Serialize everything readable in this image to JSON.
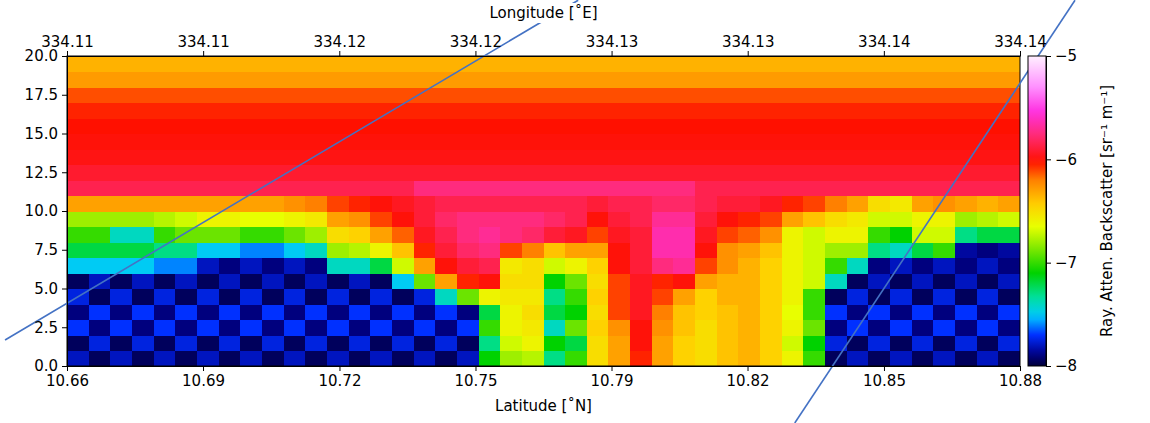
{
  "chart_data": {
    "type": "heatmap",
    "x_label": "Latitude [˚N]",
    "x2_label": "Longitude [˚E]",
    "xlim": [
      10.66,
      10.88
    ],
    "xticks": [
      10.66,
      {
        "value": 10.6914,
        "label": "10.69"
      },
      {
        "value": 10.7229,
        "label": "10.72"
      },
      {
        "value": 10.7543,
        "label": "10.75"
      },
      {
        "value": 10.7857,
        "label": "10.79"
      },
      {
        "value": 10.8171,
        "label": "10.82"
      },
      {
        "value": 10.8486,
        "label": "10.85"
      },
      10.88
    ],
    "x2lim": [
      334.108,
      334.143
    ],
    "x2ticks": [
      {
        "value": 334.108,
        "label": "334.11"
      },
      {
        "value": 334.113,
        "label": "334.11"
      },
      {
        "value": 334.118,
        "label": "334.12"
      },
      {
        "value": 334.123,
        "label": "334.12"
      },
      {
        "value": 334.128,
        "label": "334.13"
      },
      {
        "value": 334.133,
        "label": "334.13"
      },
      {
        "value": 334.138,
        "label": "334.14"
      },
      {
        "value": 334.143,
        "label": "334.14"
      }
    ],
    "ylim": [
      0,
      20
    ],
    "yticks": [
      {
        "value": 0,
        "label": "0.0"
      },
      2.5,
      {
        "value": 5,
        "label": "5.0"
      },
      7.5,
      {
        "value": 10,
        "label": "10.0"
      },
      12.5,
      {
        "value": 15,
        "label": "15.0"
      },
      17.5,
      {
        "value": 20,
        "label": "20.0"
      }
    ],
    "x_edges": [
      10.66,
      10.665,
      10.67,
      10.675,
      10.68,
      10.685,
      10.69,
      10.695,
      10.7,
      10.705,
      10.71,
      10.715,
      10.72,
      10.725,
      10.73,
      10.735,
      10.74,
      10.745,
      10.75,
      10.755,
      10.76,
      10.765,
      10.77,
      10.775,
      10.78,
      10.785,
      10.79,
      10.795,
      10.8,
      10.805,
      10.81,
      10.815,
      10.82,
      10.825,
      10.83,
      10.835,
      10.84,
      10.845,
      10.85,
      10.855,
      10.86,
      10.865,
      10.87,
      10.875,
      10.88
    ],
    "y_edges": [
      0,
      1,
      2,
      3,
      4,
      5,
      6,
      7,
      8,
      9,
      10,
      11,
      12,
      13,
      14,
      15,
      16,
      17,
      18,
      19,
      20
    ],
    "z": [
      [
        -7.8,
        -7.95,
        -7.8,
        -7.95,
        -7.8,
        -7.95,
        -7.8,
        -7.95,
        -7.8,
        -7.95,
        -7.8,
        -7.95,
        -7.8,
        -7.95,
        -7.8,
        -7.95,
        -7.8,
        -7.95,
        -7.8,
        -7.1,
        -6.8,
        -6.75,
        -7.3,
        -7.0,
        -6.5,
        -6.3,
        -6.05,
        -6.3,
        -6.45,
        -6.5,
        -6.4,
        -6.35,
        -6.45,
        -6.6,
        -7.0,
        -7.95,
        -7.8,
        -7.95,
        -7.8,
        -7.95,
        -7.8,
        -7.95,
        -7.8,
        -7.95
      ],
      [
        -7.95,
        -7.75,
        -7.95,
        -7.75,
        -7.95,
        -7.75,
        -7.95,
        -7.75,
        -7.95,
        -7.75,
        -7.95,
        -7.75,
        -7.95,
        -7.75,
        -7.95,
        -7.75,
        -7.95,
        -7.75,
        -7.95,
        -7.3,
        -6.7,
        -6.6,
        -7.1,
        -7.2,
        -6.5,
        -6.3,
        -6.0,
        -6.3,
        -6.45,
        -6.5,
        -6.4,
        -6.35,
        -6.45,
        -6.7,
        -7.1,
        -7.75,
        -7.95,
        -7.75,
        -7.95,
        -7.75,
        -7.95,
        -7.75,
        -7.95,
        -7.75
      ],
      [
        -7.7,
        -7.9,
        -7.7,
        -7.9,
        -7.7,
        -7.9,
        -7.7,
        -7.9,
        -7.7,
        -7.9,
        -7.7,
        -7.9,
        -7.7,
        -7.9,
        -7.7,
        -7.9,
        -7.7,
        -7.9,
        -7.7,
        -7.0,
        -6.6,
        -6.55,
        -7.4,
        -6.9,
        -6.45,
        -6.25,
        -6.0,
        -6.25,
        -6.4,
        -6.5,
        -6.4,
        -6.35,
        -6.45,
        -6.6,
        -6.9,
        -7.9,
        -7.7,
        -7.9,
        -7.7,
        -7.9,
        -7.7,
        -7.9,
        -7.7,
        -7.9
      ],
      [
        -7.9,
        -7.7,
        -7.9,
        -7.7,
        -7.9,
        -7.7,
        -7.9,
        -7.7,
        -7.9,
        -7.7,
        -7.9,
        -7.7,
        -7.9,
        -7.7,
        -7.9,
        -7.7,
        -7.9,
        -7.7,
        -7.9,
        -7.2,
        -6.6,
        -6.5,
        -7.2,
        -7.1,
        -6.5,
        -6.1,
        -5.95,
        -6.2,
        -6.4,
        -6.45,
        -6.4,
        -6.35,
        -6.45,
        -6.65,
        -7.0,
        -7.7,
        -7.9,
        -7.7,
        -7.9,
        -7.7,
        -7.9,
        -7.7,
        -7.9,
        -7.7
      ],
      [
        -7.75,
        -7.95,
        -7.75,
        -7.95,
        -7.75,
        -7.95,
        -7.75,
        -7.95,
        -7.75,
        -7.95,
        -7.75,
        -7.95,
        -7.75,
        -7.95,
        -7.75,
        -7.95,
        -7.75,
        -7.4,
        -6.9,
        -6.6,
        -6.55,
        -6.55,
        -7.3,
        -7.0,
        -6.45,
        -6.1,
        -5.95,
        -6.1,
        -6.3,
        -6.45,
        -6.35,
        -6.35,
        -6.45,
        -6.6,
        -7.0,
        -7.95,
        -7.75,
        -7.95,
        -7.75,
        -7.95,
        -7.75,
        -7.95,
        -7.75,
        -7.95
      ],
      [
        -7.95,
        -7.8,
        -7.95,
        -7.8,
        -7.95,
        -7.8,
        -7.95,
        -7.8,
        -7.95,
        -7.8,
        -7.95,
        -7.8,
        -7.95,
        -7.8,
        -7.95,
        -7.5,
        -6.9,
        -6.3,
        -6.05,
        -6.0,
        -6.5,
        -6.5,
        -7.1,
        -6.9,
        -6.5,
        -6.1,
        -5.95,
        -6.05,
        -6.0,
        -6.3,
        -6.35,
        -6.35,
        -6.45,
        -6.6,
        -6.7,
        -7.4,
        -7.95,
        -7.8,
        -7.95,
        -7.8,
        -7.95,
        -7.8,
        -7.95,
        -7.8
      ],
      [
        -7.5,
        -7.5,
        -7.5,
        -7.5,
        -7.6,
        -7.6,
        -7.8,
        -7.9,
        -7.8,
        -7.9,
        -7.8,
        -7.9,
        -7.4,
        -7.4,
        -7.2,
        -6.7,
        -6.3,
        -6.0,
        -5.9,
        -5.85,
        -6.55,
        -6.5,
        -6.7,
        -6.6,
        -6.45,
        -6.0,
        -5.9,
        -5.75,
        -5.7,
        -6.1,
        -6.25,
        -6.35,
        -6.45,
        -6.6,
        -6.7,
        -7.0,
        -7.4,
        -7.9,
        -7.8,
        -7.9,
        -7.8,
        -7.9,
        -7.8,
        -7.9
      ],
      [
        -7.2,
        -7.2,
        -7.2,
        -7.2,
        -7.3,
        -7.3,
        -7.5,
        -7.5,
        -7.6,
        -7.6,
        -7.5,
        -7.4,
        -6.8,
        -6.75,
        -6.6,
        -6.4,
        -6.05,
        -5.9,
        -5.8,
        -5.75,
        -6.1,
        -6.2,
        -6.4,
        -6.3,
        -6.3,
        -6.0,
        -5.9,
        -5.65,
        -5.65,
        -6.0,
        -6.25,
        -6.3,
        -6.4,
        -6.6,
        -6.7,
        -6.8,
        -6.8,
        -7.3,
        -7.4,
        -7.2,
        -7.0,
        -7.85,
        -7.9,
        -7.85
      ],
      [
        -7.0,
        -7.0,
        -7.4,
        -7.4,
        -7.0,
        -6.9,
        -6.9,
        -6.9,
        -7.0,
        -7.0,
        -6.9,
        -6.8,
        -6.5,
        -6.45,
        -6.3,
        -6.15,
        -5.95,
        -5.85,
        -5.75,
        -5.7,
        -5.75,
        -5.8,
        -5.9,
        -5.95,
        -6.1,
        -5.95,
        -5.9,
        -5.65,
        -5.65,
        -5.95,
        -6.1,
        -6.15,
        -6.25,
        -6.6,
        -6.7,
        -6.6,
        -6.6,
        -7.0,
        -7.1,
        -6.7,
        -6.7,
        -7.3,
        -7.2,
        -7.2
      ],
      [
        -6.8,
        -6.8,
        -6.8,
        -6.8,
        -6.75,
        -6.7,
        -6.6,
        -6.6,
        -6.65,
        -6.65,
        -6.6,
        -6.55,
        -6.3,
        -6.25,
        -6.1,
        -6.0,
        -5.9,
        -5.8,
        -5.75,
        -5.75,
        -5.75,
        -5.75,
        -5.8,
        -5.85,
        -6.0,
        -5.9,
        -5.85,
        -5.7,
        -5.7,
        -5.9,
        -6.0,
        -6.05,
        -6.1,
        -6.3,
        -6.4,
        -6.5,
        -6.55,
        -6.7,
        -6.7,
        -6.6,
        -6.6,
        -6.8,
        -6.75,
        -6.7
      ],
      [
        -6.3,
        -6.3,
        -6.3,
        -6.3,
        -6.3,
        -6.3,
        -6.3,
        -6.3,
        -6.3,
        -6.3,
        -6.25,
        -6.2,
        -6.1,
        -6.05,
        -6.0,
        -5.95,
        -5.9,
        -5.85,
        -5.85,
        -5.85,
        -5.85,
        -5.85,
        -5.85,
        -5.85,
        -5.9,
        -5.85,
        -5.85,
        -5.8,
        -5.8,
        -5.85,
        -5.9,
        -5.9,
        -5.95,
        -6.05,
        -6.1,
        -6.2,
        -6.3,
        -6.5,
        -6.55,
        -6.3,
        -6.25,
        -6.3,
        -6.35,
        -6.3
      ],
      [
        -5.85,
        -5.85,
        -5.85,
        -5.85,
        -5.85,
        -5.85,
        -5.85,
        -5.85,
        -5.85,
        -5.85,
        -5.85,
        -5.85,
        -5.85,
        -5.85,
        -5.85,
        -5.85,
        -5.75,
        -5.75,
        -5.75,
        -5.75,
        -5.75,
        -5.75,
        -5.75,
        -5.75,
        -5.75,
        -5.75,
        -5.75,
        -5.75,
        -5.75,
        -5.85,
        -5.85,
        -5.85,
        -5.85,
        -5.85,
        -5.85,
        -5.85,
        -5.85,
        -5.85,
        -5.85,
        -5.85,
        -5.85,
        -5.85,
        -5.85,
        -5.85
      ],
      [
        -5.92,
        -5.92,
        -5.92,
        -5.92,
        -5.92,
        -5.92,
        -5.92,
        -5.92,
        -5.92,
        -5.92,
        -5.92,
        -5.92,
        -5.92,
        -5.92,
        -5.92,
        -5.92,
        -5.92,
        -5.92,
        -5.92,
        -5.92,
        -5.92,
        -5.92,
        -5.92,
        -5.92,
        -5.92,
        -5.92,
        -5.92,
        -5.92,
        -5.92,
        -5.92,
        -5.92,
        -5.92,
        -5.92,
        -5.92,
        -5.92,
        -5.92,
        -5.92,
        -5.92,
        -5.92,
        -5.92,
        -5.92,
        -5.92,
        -5.92,
        -5.92
      ],
      [
        -5.98,
        -5.98,
        -5.98,
        -5.98,
        -5.98,
        -5.98,
        -5.98,
        -5.98,
        -5.98,
        -5.98,
        -5.98,
        -5.98,
        -5.98,
        -5.98,
        -5.98,
        -5.98,
        -5.98,
        -5.98,
        -5.98,
        -5.98,
        -5.98,
        -5.98,
        -5.98,
        -5.98,
        -5.98,
        -5.98,
        -5.98,
        -5.98,
        -5.98,
        -5.98,
        -5.98,
        -5.98,
        -5.98,
        -5.98,
        -5.98,
        -5.98,
        -5.98,
        -5.98,
        -5.98,
        -5.98,
        -5.98,
        -5.98,
        -5.98,
        -5.98
      ],
      [
        -6.0,
        -6.0,
        -6.0,
        -6.0,
        -6.0,
        -6.0,
        -6.0,
        -6.0,
        -6.0,
        -6.0,
        -6.0,
        -6.0,
        -6.0,
        -6.0,
        -6.0,
        -6.0,
        -6.0,
        -6.0,
        -6.0,
        -6.0,
        -6.0,
        -6.0,
        -6.0,
        -6.0,
        -6.0,
        -6.0,
        -6.0,
        -6.0,
        -6.0,
        -6.0,
        -6.0,
        -6.0,
        -6.0,
        -6.0,
        -6.0,
        -6.0,
        -6.0,
        -6.0,
        -6.0,
        -6.0,
        -6.0,
        -6.0,
        -6.0,
        -6.0
      ],
      [
        -6.02,
        -6.02,
        -6.02,
        -6.02,
        -6.02,
        -6.02,
        -6.02,
        -6.02,
        -6.02,
        -6.02,
        -6.02,
        -6.02,
        -6.02,
        -6.02,
        -6.02,
        -6.02,
        -6.02,
        -6.02,
        -6.02,
        -6.02,
        -6.02,
        -6.02,
        -6.02,
        -6.02,
        -6.02,
        -6.02,
        -6.02,
        -6.02,
        -6.02,
        -6.02,
        -6.02,
        -6.02,
        -6.02,
        -6.02,
        -6.02,
        -6.02,
        -6.02,
        -6.02,
        -6.02,
        -6.02,
        -6.02,
        -6.02,
        -6.02,
        -6.02
      ],
      [
        -6.05,
        -6.05,
        -6.05,
        -6.05,
        -6.05,
        -6.05,
        -6.05,
        -6.05,
        -6.05,
        -6.05,
        -6.05,
        -6.05,
        -6.05,
        -6.05,
        -6.05,
        -6.05,
        -6.05,
        -6.05,
        -6.05,
        -6.05,
        -6.05,
        -6.05,
        -6.05,
        -6.05,
        -6.05,
        -6.05,
        -6.05,
        -6.05,
        -6.05,
        -6.05,
        -6.05,
        -6.05,
        -6.05,
        -6.05,
        -6.05,
        -6.05,
        -6.05,
        -6.05,
        -6.05,
        -6.05,
        -6.05,
        -6.05,
        -6.05,
        -6.05
      ],
      [
        -6.12,
        -6.12,
        -6.12,
        -6.12,
        -6.12,
        -6.12,
        -6.12,
        -6.12,
        -6.12,
        -6.12,
        -6.12,
        -6.12,
        -6.12,
        -6.12,
        -6.12,
        -6.12,
        -6.12,
        -6.12,
        -6.12,
        -6.12,
        -6.12,
        -6.12,
        -6.12,
        -6.12,
        -6.12,
        -6.12,
        -6.12,
        -6.12,
        -6.12,
        -6.12,
        -6.12,
        -6.12,
        -6.12,
        -6.12,
        -6.12,
        -6.12,
        -6.12,
        -6.12,
        -6.12,
        -6.12,
        -6.12,
        -6.12,
        -6.12,
        -6.12
      ],
      [
        -6.28,
        -6.28,
        -6.28,
        -6.28,
        -6.28,
        -6.28,
        -6.28,
        -6.28,
        -6.28,
        -6.28,
        -6.28,
        -6.28,
        -6.28,
        -6.28,
        -6.28,
        -6.28,
        -6.28,
        -6.28,
        -6.28,
        -6.28,
        -6.28,
        -6.28,
        -6.28,
        -6.28,
        -6.28,
        -6.28,
        -6.28,
        -6.28,
        -6.28,
        -6.28,
        -6.28,
        -6.28,
        -6.28,
        -6.28,
        -6.28,
        -6.28,
        -6.28,
        -6.28,
        -6.28,
        -6.28,
        -6.28,
        -6.28,
        -6.28,
        -6.28
      ],
      [
        -6.35,
        -6.35,
        -6.35,
        -6.35,
        -6.35,
        -6.35,
        -6.35,
        -6.35,
        -6.35,
        -6.35,
        -6.35,
        -6.35,
        -6.35,
        -6.35,
        -6.35,
        -6.35,
        -6.35,
        -6.35,
        -6.35,
        -6.35,
        -6.35,
        -6.35,
        -6.35,
        -6.35,
        -6.35,
        -6.35,
        -6.35,
        -6.35,
        -6.35,
        -6.35,
        -6.35,
        -6.35,
        -6.35,
        -6.35,
        -6.35,
        -6.35,
        -6.35,
        -6.35,
        -6.35,
        -6.35,
        -6.35,
        -6.35,
        -6.35,
        -6.35
      ]
    ],
    "colorbar": {
      "label": "Ray. Atten. Backscatter [sr⁻¹ m⁻¹]",
      "range": [
        -8,
        -5
      ],
      "ticks": [
        {
          "value": -8,
          "label": "−8"
        },
        {
          "value": -7,
          "label": "−7"
        },
        {
          "value": -6,
          "label": "−6"
        },
        {
          "value": -5,
          "label": "−5"
        }
      ]
    },
    "overlay_lines": [
      {
        "x": [
          10.6457,
          10.778
        ],
        "y": [
          1.68,
          23.6
        ],
        "color": "#4472c4"
      },
      {
        "x": [
          10.828,
          10.8927
        ],
        "y": [
          -3.68,
          23.6
        ],
        "color": "#4472c4"
      }
    ]
  }
}
